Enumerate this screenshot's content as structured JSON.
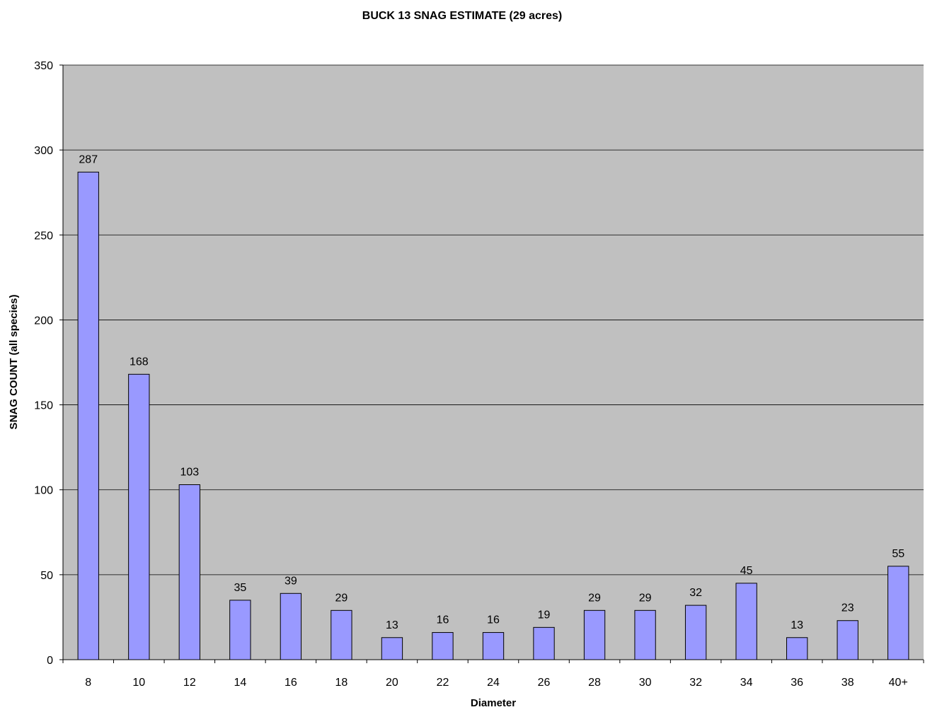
{
  "chart_data": {
    "type": "bar",
    "title": "BUCK 13 SNAG ESTIMATE (29 acres)",
    "xlabel": "Diameter",
    "ylabel": "SNAG COUNT (all species)",
    "categories": [
      "8",
      "10",
      "12",
      "14",
      "16",
      "18",
      "20",
      "22",
      "24",
      "26",
      "28",
      "30",
      "32",
      "34",
      "36",
      "38",
      "40+"
    ],
    "values": [
      287,
      168,
      103,
      35,
      39,
      29,
      13,
      16,
      16,
      19,
      29,
      29,
      32,
      45,
      13,
      23,
      55
    ],
    "ylim": [
      0,
      350
    ],
    "yticks": [
      0,
      50,
      100,
      150,
      200,
      250,
      300,
      350
    ],
    "grid": true,
    "legend": false,
    "data_labels": true,
    "colors": {
      "plot_background": "#C0C0C0",
      "bar_fill": "#9999FF",
      "bar_stroke": "#000000",
      "gridline": "#000000"
    }
  }
}
